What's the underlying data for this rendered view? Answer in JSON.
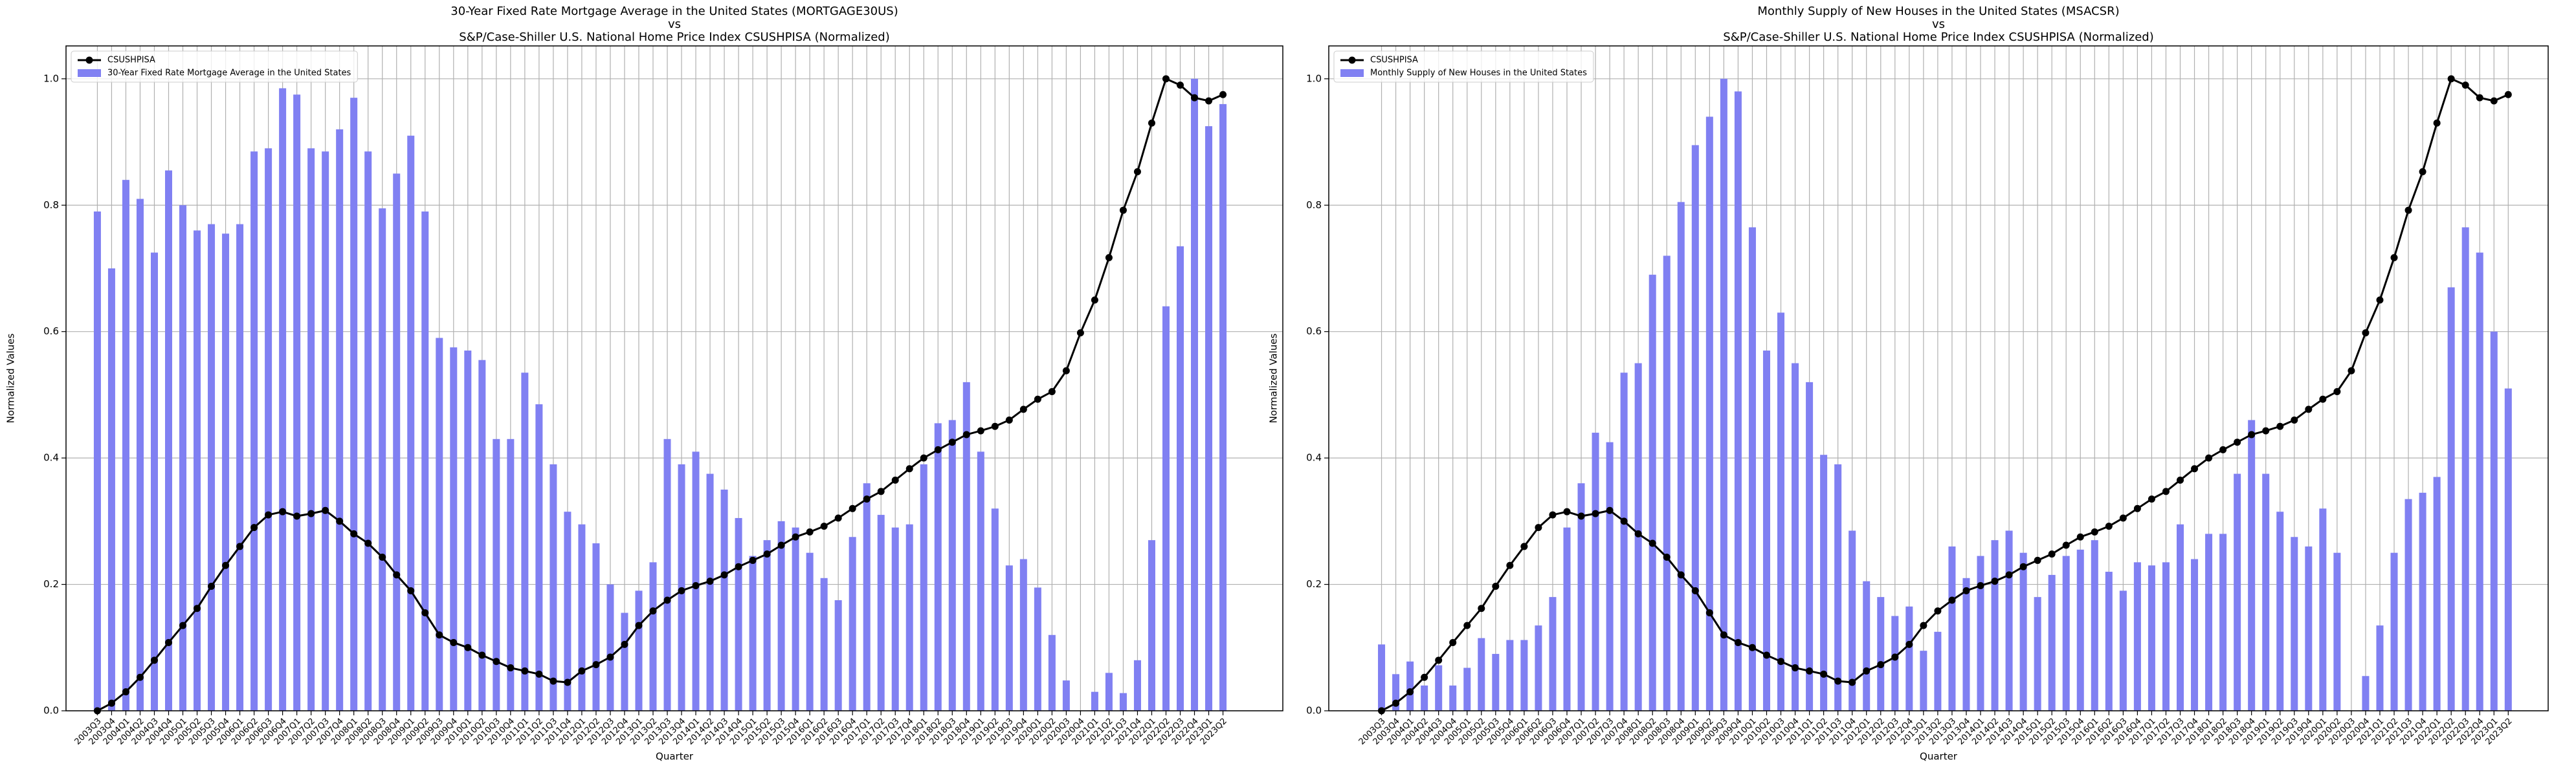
{
  "chart_data": [
    {
      "type": "bar_line",
      "title": [
        "30-Year Fixed Rate Mortgage Average in the United States (MORTGAGE30US)",
        "vs",
        "S&P/Case-Shiller U.S. National Home Price Index CSUSHPISA (Normalized)"
      ],
      "xlabel": "Quarter",
      "ylabel": "Normalized Values",
      "categories": [
        "2003Q3",
        "2003Q4",
        "2004Q1",
        "2004Q2",
        "2004Q3",
        "2004Q4",
        "2005Q1",
        "2005Q2",
        "2005Q3",
        "2005Q4",
        "2006Q1",
        "2006Q2",
        "2006Q3",
        "2006Q4",
        "2007Q1",
        "2007Q2",
        "2007Q3",
        "2007Q4",
        "2008Q1",
        "2008Q2",
        "2008Q3",
        "2008Q4",
        "2009Q1",
        "2009Q2",
        "2009Q3",
        "2009Q4",
        "2010Q1",
        "2010Q2",
        "2010Q3",
        "2010Q4",
        "2011Q1",
        "2011Q2",
        "2011Q3",
        "2011Q4",
        "2012Q1",
        "2012Q2",
        "2012Q3",
        "2012Q4",
        "2013Q1",
        "2013Q2",
        "2013Q3",
        "2013Q4",
        "2014Q1",
        "2014Q2",
        "2014Q3",
        "2014Q4",
        "2015Q1",
        "2015Q2",
        "2015Q3",
        "2015Q4",
        "2016Q1",
        "2016Q2",
        "2016Q3",
        "2016Q4",
        "2017Q1",
        "2017Q2",
        "2017Q3",
        "2017Q4",
        "2018Q1",
        "2018Q2",
        "2018Q3",
        "2018Q4",
        "2019Q1",
        "2019Q2",
        "2019Q3",
        "2019Q4",
        "2020Q1",
        "2020Q2",
        "2020Q3",
        "2020Q4",
        "2021Q1",
        "2021Q2",
        "2021Q3",
        "2021Q4",
        "2022Q1",
        "2022Q2",
        "2022Q3",
        "2022Q4",
        "2023Q1",
        "2023Q2"
      ],
      "series": [
        {
          "name": "CSUSHPISA",
          "type": "line",
          "color": "#000000",
          "values": [
            0.0,
            0.012,
            0.03,
            0.053,
            0.08,
            0.108,
            0.135,
            0.162,
            0.197,
            0.23,
            0.26,
            0.29,
            0.31,
            0.315,
            0.308,
            0.312,
            0.317,
            0.3,
            0.28,
            0.265,
            0.243,
            0.215,
            0.19,
            0.155,
            0.12,
            0.108,
            0.1,
            0.088,
            0.078,
            0.068,
            0.063,
            0.058,
            0.047,
            0.045,
            0.063,
            0.073,
            0.085,
            0.105,
            0.135,
            0.158,
            0.175,
            0.19,
            0.198,
            0.205,
            0.215,
            0.228,
            0.238,
            0.248,
            0.262,
            0.275,
            0.283,
            0.292,
            0.305,
            0.32,
            0.335,
            0.347,
            0.365,
            0.383,
            0.4,
            0.413,
            0.425,
            0.437,
            0.443,
            0.45,
            0.46,
            0.477,
            0.493,
            0.505,
            0.538,
            0.598,
            0.65,
            0.717,
            0.792,
            0.853,
            0.93,
            1.0,
            0.99,
            0.97,
            0.965,
            0.975
          ]
        },
        {
          "name": "30-Year Fixed Rate Mortgage Average in the United States",
          "type": "bar",
          "color": "#8080f2",
          "values": [
            0.79,
            0.7,
            0.84,
            0.81,
            0.725,
            0.855,
            0.8,
            0.76,
            0.77,
            0.755,
            0.77,
            0.885,
            0.89,
            0.985,
            0.975,
            0.89,
            0.885,
            0.92,
            0.97,
            0.885,
            0.795,
            0.85,
            0.91,
            0.79,
            0.59,
            0.575,
            0.57,
            0.555,
            0.43,
            0.43,
            0.535,
            0.485,
            0.39,
            0.315,
            0.295,
            0.265,
            0.2,
            0.155,
            0.19,
            0.235,
            0.43,
            0.39,
            0.41,
            0.375,
            0.35,
            0.305,
            0.245,
            0.27,
            0.3,
            0.29,
            0.25,
            0.21,
            0.175,
            0.275,
            0.36,
            0.31,
            0.29,
            0.295,
            0.39,
            0.455,
            0.46,
            0.52,
            0.41,
            0.32,
            0.23,
            0.24,
            0.195,
            0.12,
            0.048,
            0.0,
            0.03,
            0.06,
            0.028,
            0.08,
            0.27,
            0.64,
            0.735,
            1.0,
            0.925,
            0.96
          ]
        }
      ],
      "ylim": [
        0,
        1.052
      ],
      "yticks": [
        {
          "value": 0,
          "label": "0.0"
        },
        0.2,
        0.4,
        0.6,
        0.8,
        {
          "value": 1,
          "label": "1.0"
        }
      ],
      "grid": true,
      "legend": "upper left"
    },
    {
      "type": "bar_line",
      "title": [
        "Monthly Supply of New Houses in the United States (MSACSR)",
        "vs",
        "S&P/Case-Shiller U.S. National Home Price Index CSUSHPISA (Normalized)"
      ],
      "xlabel": "Quarter",
      "ylabel": "Normalized Values",
      "categories": [
        "2003Q3",
        "2003Q4",
        "2004Q1",
        "2004Q2",
        "2004Q3",
        "2004Q4",
        "2005Q1",
        "2005Q2",
        "2005Q3",
        "2005Q4",
        "2006Q1",
        "2006Q2",
        "2006Q3",
        "2006Q4",
        "2007Q1",
        "2007Q2",
        "2007Q3",
        "2007Q4",
        "2008Q1",
        "2008Q2",
        "2008Q3",
        "2008Q4",
        "2009Q1",
        "2009Q2",
        "2009Q3",
        "2009Q4",
        "2010Q1",
        "2010Q2",
        "2010Q3",
        "2010Q4",
        "2011Q1",
        "2011Q2",
        "2011Q3",
        "2011Q4",
        "2012Q1",
        "2012Q2",
        "2012Q3",
        "2012Q4",
        "2013Q1",
        "2013Q2",
        "2013Q3",
        "2013Q4",
        "2014Q1",
        "2014Q2",
        "2014Q3",
        "2014Q4",
        "2015Q1",
        "2015Q2",
        "2015Q3",
        "2015Q4",
        "2016Q1",
        "2016Q2",
        "2016Q3",
        "2016Q4",
        "2017Q1",
        "2017Q2",
        "2017Q3",
        "2017Q4",
        "2018Q1",
        "2018Q2",
        "2018Q3",
        "2018Q4",
        "2019Q1",
        "2019Q2",
        "2019Q3",
        "2019Q4",
        "2020Q1",
        "2020Q2",
        "2020Q3",
        "2020Q4",
        "2021Q1",
        "2021Q2",
        "2021Q3",
        "2021Q4",
        "2022Q1",
        "2022Q2",
        "2022Q3",
        "2022Q4",
        "2023Q1",
        "2023Q2"
      ],
      "series": [
        {
          "name": "CSUSHPISA",
          "type": "line",
          "color": "#000000",
          "values": [
            0.0,
            0.012,
            0.03,
            0.053,
            0.08,
            0.108,
            0.135,
            0.162,
            0.197,
            0.23,
            0.26,
            0.29,
            0.31,
            0.315,
            0.308,
            0.312,
            0.317,
            0.3,
            0.28,
            0.265,
            0.243,
            0.215,
            0.19,
            0.155,
            0.12,
            0.108,
            0.1,
            0.088,
            0.078,
            0.068,
            0.063,
            0.058,
            0.047,
            0.045,
            0.063,
            0.073,
            0.085,
            0.105,
            0.135,
            0.158,
            0.175,
            0.19,
            0.198,
            0.205,
            0.215,
            0.228,
            0.238,
            0.248,
            0.262,
            0.275,
            0.283,
            0.292,
            0.305,
            0.32,
            0.335,
            0.347,
            0.365,
            0.383,
            0.4,
            0.413,
            0.425,
            0.437,
            0.443,
            0.45,
            0.46,
            0.477,
            0.493,
            0.505,
            0.538,
            0.598,
            0.65,
            0.717,
            0.792,
            0.853,
            0.93,
            1.0,
            0.99,
            0.97,
            0.965,
            0.975
          ]
        },
        {
          "name": "Monthly Supply of New Houses in the United States",
          "type": "bar",
          "color": "#8080f2",
          "values": [
            0.105,
            0.058,
            0.078,
            0.04,
            0.072,
            0.04,
            0.068,
            0.115,
            0.09,
            0.112,
            0.112,
            0.135,
            0.18,
            0.29,
            0.36,
            0.44,
            0.425,
            0.535,
            0.55,
            0.69,
            0.72,
            0.805,
            0.895,
            0.94,
            1.0,
            0.98,
            0.765,
            0.57,
            0.63,
            0.55,
            0.52,
            0.405,
            0.39,
            0.285,
            0.205,
            0.18,
            0.15,
            0.165,
            0.095,
            0.125,
            0.26,
            0.21,
            0.245,
            0.27,
            0.285,
            0.25,
            0.18,
            0.215,
            0.245,
            0.255,
            0.27,
            0.22,
            0.19,
            0.235,
            0.23,
            0.235,
            0.295,
            0.24,
            0.28,
            0.28,
            0.375,
            0.46,
            0.375,
            0.315,
            0.275,
            0.26,
            0.32,
            0.25,
            0.0,
            0.055,
            0.135,
            0.25,
            0.335,
            0.345,
            0.37,
            0.67,
            0.765,
            0.725,
            0.6,
            0.51
          ]
        }
      ],
      "ylim": [
        0,
        1.052
      ],
      "yticks": [
        {
          "value": 0,
          "label": "0.0"
        },
        0.2,
        0.4,
        0.6,
        0.8,
        {
          "value": 1,
          "label": "1.0"
        }
      ],
      "grid": true,
      "legend": "upper left"
    }
  ]
}
